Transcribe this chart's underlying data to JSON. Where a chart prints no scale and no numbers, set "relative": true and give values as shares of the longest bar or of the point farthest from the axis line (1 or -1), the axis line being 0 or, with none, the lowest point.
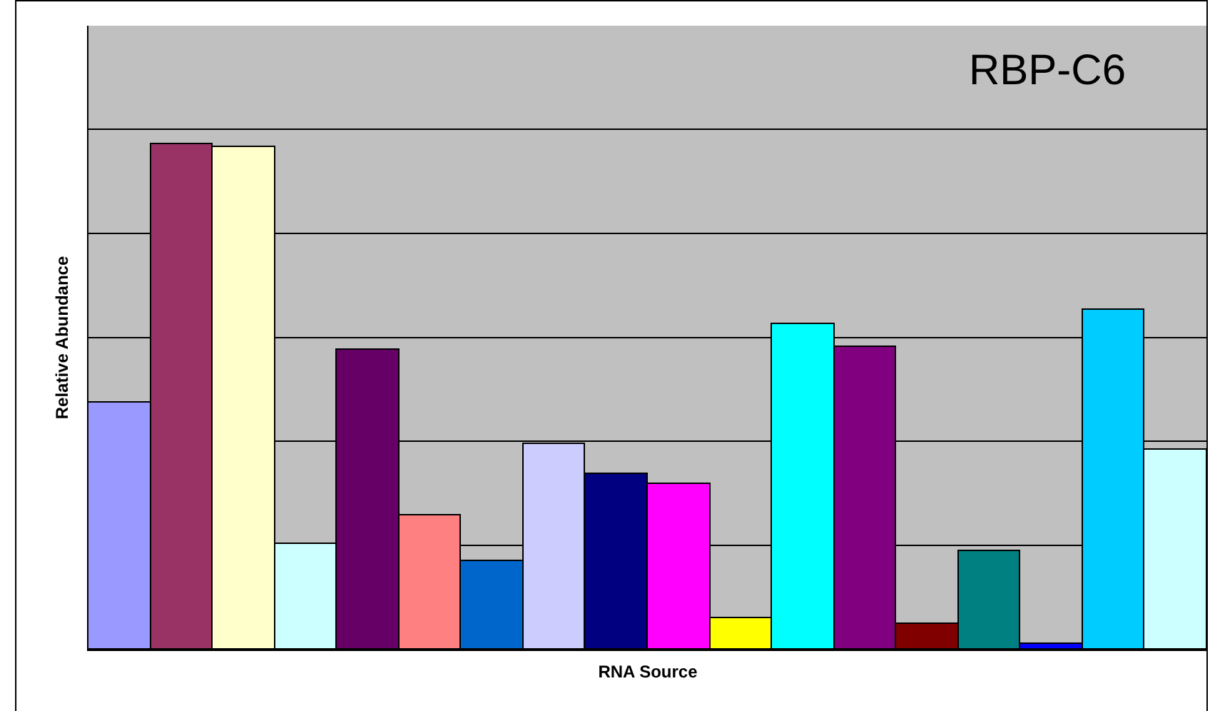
{
  "chart_data": {
    "type": "bar",
    "title": "RBP-C6",
    "xlabel": "RNA Source",
    "ylabel": "Relative Abundance",
    "relative": true,
    "grid": "y",
    "categories": [
      null,
      null,
      null,
      null,
      null,
      null,
      null,
      null,
      null,
      null,
      null,
      null,
      null,
      null,
      null,
      null,
      null,
      null
    ],
    "values": [
      0.49,
      1,
      0.994,
      0.209,
      0.593,
      0.266,
      0.175,
      0.407,
      0.347,
      0.328,
      0.062,
      0.644,
      0.599,
      0.051,
      0.195,
      0.011,
      0.672,
      0.395
    ],
    "colors": [
      "#9999ff",
      "#993366",
      "#ffffcc",
      "#ccffff",
      "#660066",
      "#ff8080",
      "#0066cc",
      "#ccccff",
      "#000080",
      "#ff00ff",
      "#ffff00",
      "#00ffff",
      "#800080",
      "#800000",
      "#008080",
      "#0000ff",
      "#00ccff",
      "#ccffff"
    ]
  }
}
